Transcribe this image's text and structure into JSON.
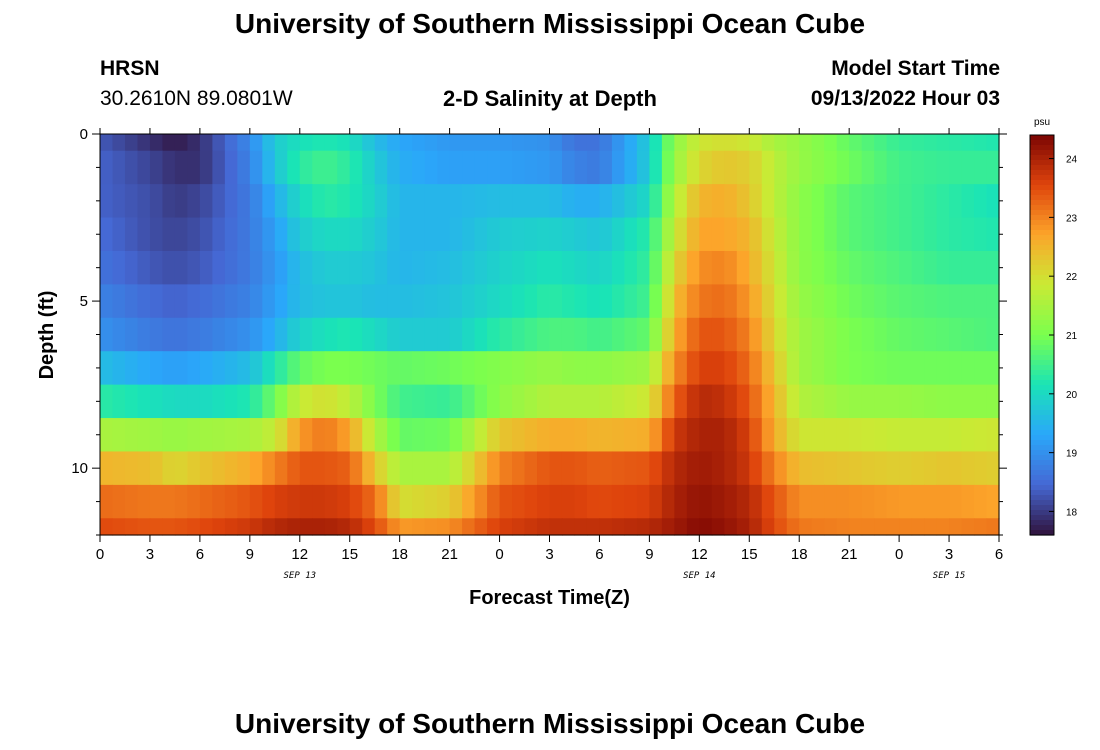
{
  "header": {
    "title_top": "University of Southern Mississippi Ocean Cube",
    "station": "HRSN",
    "coords": "30.2610N  89.0801W",
    "plot_title": "2-D Salinity at Depth",
    "model_label": "Model Start Time",
    "model_time": "09/13/2022 Hour 03",
    "title_bottom": "University of Southern Mississippi Ocean Cube"
  },
  "chart_data": {
    "type": "heatmap",
    "title": "2-D Salinity at Depth",
    "xlabel": "Forecast Time(Z)",
    "ylabel": "Depth (ft)",
    "x_start_hour": 0,
    "x_end_hour": 54,
    "x_tick_hours": [
      0,
      3,
      6,
      9,
      12,
      15,
      18,
      21,
      24,
      27,
      30,
      33,
      36,
      39,
      42,
      45,
      48,
      51,
      54
    ],
    "x_tick_labels": [
      "0",
      "3",
      "6",
      "9",
      "12",
      "15",
      "18",
      "21",
      "0",
      "3",
      "6",
      "9",
      "12",
      "15",
      "18",
      "21",
      "0",
      "3",
      "6"
    ],
    "date_labels": [
      {
        "hour": 12,
        "text": "SEP 13"
      },
      {
        "hour": 36,
        "text": "SEP 14"
      },
      {
        "hour": 51,
        "text": "SEP 15"
      }
    ],
    "ylim": [
      0,
      12
    ],
    "y_ticks": [
      0,
      5,
      10
    ],
    "y_tick_labels": [
      "0",
      "5",
      "10"
    ],
    "layer_edges_ft": [
      0,
      0.5,
      1.5,
      2.5,
      3.5,
      4.5,
      5.5,
      6.5,
      7.5,
      8.5,
      9.5,
      10.5,
      11.5,
      12
    ],
    "keyframe_hours": [
      0,
      3,
      4.5,
      6,
      9,
      10.5,
      12,
      13.5,
      15,
      16.5,
      18,
      21,
      24,
      27,
      28.5,
      30,
      33,
      34.5,
      36,
      37.5,
      39,
      40.5,
      42,
      45,
      48,
      51,
      54
    ],
    "salinity_keyframes": [
      [
        18.3,
        17.9,
        17.7,
        17.9,
        18.9,
        19.8,
        20.1,
        20.2,
        20.1,
        19.6,
        19.3,
        19.1,
        19.1,
        19.0,
        18.6,
        18.6,
        19.8,
        21.2,
        21.9,
        22.0,
        21.9,
        21.5,
        21.3,
        20.8,
        20.4,
        20.3,
        20.2
      ],
      [
        18.4,
        18.1,
        17.9,
        17.9,
        18.8,
        19.7,
        20.3,
        20.5,
        20.3,
        19.8,
        19.4,
        19.2,
        19.2,
        19.1,
        18.8,
        18.7,
        19.8,
        21.3,
        22.1,
        22.3,
        22.2,
        21.7,
        21.3,
        20.9,
        20.5,
        20.4,
        20.4
      ],
      [
        18.4,
        18.2,
        18.0,
        18.1,
        18.7,
        19.4,
        20.0,
        20.3,
        20.2,
        19.9,
        19.5,
        19.5,
        19.6,
        19.6,
        19.4,
        19.4,
        20.0,
        21.6,
        22.5,
        22.6,
        22.3,
        21.7,
        21.2,
        20.7,
        20.5,
        20.3,
        20.1
      ],
      [
        18.5,
        18.2,
        18.1,
        18.2,
        18.7,
        19.2,
        19.8,
        20.0,
        20.0,
        19.8,
        19.5,
        19.5,
        19.8,
        19.9,
        19.8,
        19.7,
        20.3,
        21.8,
        22.7,
        22.7,
        22.5,
        21.8,
        21.2,
        20.7,
        20.5,
        20.3,
        20.2
      ],
      [
        18.6,
        18.3,
        18.2,
        18.3,
        18.7,
        19.1,
        19.6,
        19.8,
        19.8,
        19.7,
        19.5,
        19.6,
        19.9,
        20.1,
        20.0,
        19.9,
        20.4,
        22.1,
        22.9,
        23.0,
        22.6,
        21.9,
        21.2,
        20.8,
        20.6,
        20.4,
        20.4
      ],
      [
        18.8,
        18.5,
        18.4,
        18.5,
        18.8,
        19.2,
        19.6,
        19.7,
        19.7,
        19.6,
        19.6,
        19.7,
        20.0,
        20.3,
        20.2,
        20.1,
        20.5,
        22.4,
        23.1,
        23.2,
        22.8,
        22.0,
        21.3,
        20.9,
        20.7,
        20.6,
        20.6
      ],
      [
        19.0,
        18.7,
        18.6,
        18.7,
        19.0,
        19.4,
        19.9,
        20.1,
        20.2,
        20.0,
        19.8,
        19.8,
        20.3,
        20.6,
        20.6,
        20.5,
        20.8,
        22.6,
        23.4,
        23.4,
        23.0,
        22.1,
        21.4,
        21.0,
        20.8,
        20.7,
        20.6
      ],
      [
        19.6,
        19.3,
        19.2,
        19.3,
        19.6,
        20.2,
        20.8,
        21.0,
        21.0,
        20.9,
        20.8,
        20.9,
        21.1,
        21.3,
        21.2,
        21.2,
        21.4,
        22.9,
        23.6,
        23.6,
        23.2,
        22.3,
        21.4,
        21.0,
        20.9,
        20.9,
        20.9
      ],
      [
        20.3,
        20.1,
        20.0,
        20.0,
        20.2,
        20.9,
        21.8,
        22.0,
        21.7,
        21.0,
        20.5,
        20.4,
        21.2,
        21.6,
        21.6,
        21.6,
        21.9,
        23.3,
        23.9,
        23.8,
        23.4,
        22.5,
        21.6,
        21.3,
        21.3,
        21.2,
        21.2
      ],
      [
        21.5,
        21.4,
        21.3,
        21.4,
        21.5,
        21.8,
        22.8,
        23.1,
        22.7,
        21.6,
        20.8,
        20.9,
        22.3,
        22.6,
        22.6,
        22.5,
        22.6,
        23.7,
        24.0,
        24.0,
        23.6,
        22.6,
        21.9,
        21.9,
        21.8,
        21.8,
        21.9
      ],
      [
        22.5,
        22.4,
        22.1,
        22.3,
        22.6,
        23.0,
        23.4,
        23.4,
        23.3,
        22.3,
        21.5,
        21.5,
        23.0,
        23.4,
        23.4,
        23.3,
        23.4,
        23.9,
        24.1,
        24.0,
        23.7,
        23.0,
        22.4,
        22.3,
        22.2,
        22.3,
        22.2
      ],
      [
        23.2,
        23.1,
        23.1,
        23.2,
        23.4,
        23.6,
        23.7,
        23.7,
        23.6,
        23.2,
        22.0,
        22.2,
        23.4,
        23.6,
        23.6,
        23.5,
        23.6,
        24.0,
        24.2,
        24.1,
        23.9,
        23.4,
        22.9,
        22.9,
        22.8,
        22.8,
        22.7
      ],
      [
        23.5,
        23.4,
        23.4,
        23.5,
        23.7,
        23.9,
        24.0,
        24.0,
        23.9,
        23.5,
        22.8,
        22.9,
        23.6,
        23.8,
        23.8,
        23.8,
        23.9,
        24.1,
        24.3,
        24.2,
        24.0,
        23.5,
        23.1,
        23.0,
        23.0,
        23.0,
        23.1
      ]
    ],
    "colorbar": {
      "label": "psu",
      "min": 17.6,
      "max": 24.4,
      "ticks": [
        18,
        19,
        20,
        21,
        22,
        23,
        24
      ],
      "tick_labels": [
        "18",
        "19",
        "20",
        "21",
        "22",
        "23",
        "24"
      ],
      "colormap": "turbo"
    }
  }
}
